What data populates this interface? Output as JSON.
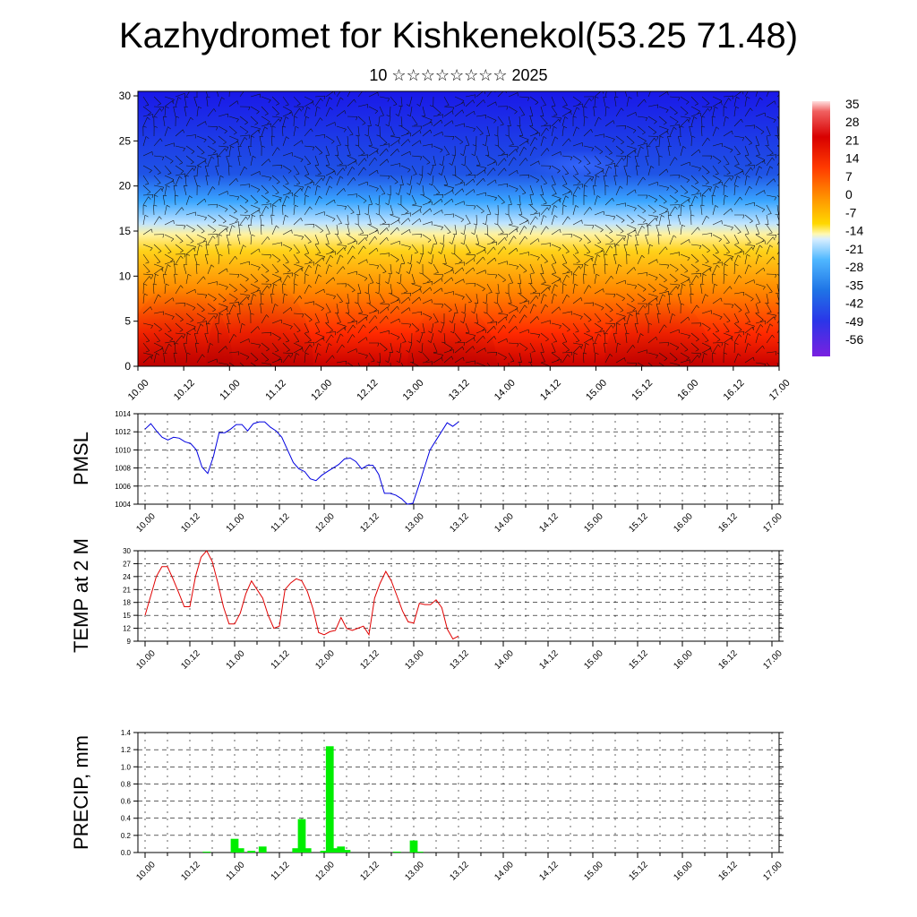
{
  "header": {
    "title": "Kazhydromet for Kishkenekol(53.25 71.48)",
    "subtitle": "10 ☆☆☆☆☆☆☆☆ 2025"
  },
  "colors": {
    "pmsl_line": "#0000e0",
    "temp_line": "#e00000",
    "precip_bar": "#00ee00",
    "grid": "#000000"
  },
  "chart_data": [
    {
      "type": "heatmap",
      "name": "cross-section",
      "x_ticklabels": [
        "10.00",
        "10.12",
        "11.00",
        "11.12",
        "12.00",
        "12.12",
        "13.00",
        "13.12",
        "14.00",
        "14.12",
        "15.00",
        "15.12",
        "16.00",
        "16.12",
        "17.00"
      ],
      "y_ticks": [
        0,
        5,
        10,
        15,
        20,
        25,
        30
      ],
      "ylim": [
        0,
        30.5
      ],
      "colorbar_labels": [
        "35",
        "28",
        "21",
        "14",
        "7",
        "0",
        "-7",
        "-14",
        "-21",
        "-28",
        "-35",
        "-42",
        "-49",
        "-56"
      ],
      "overlay": "wind barbs",
      "legend_position": "right"
    },
    {
      "type": "line",
      "ylabel": "PMSL",
      "ylim": [
        1004,
        1014
      ],
      "y_ticks": [
        1004,
        1006,
        1008,
        1010,
        1012,
        1014
      ],
      "x_ticklabels": [
        "10.00",
        "10.12",
        "11.00",
        "11.12",
        "12.00",
        "12.12",
        "13.00",
        "13.12",
        "14.00",
        "14.12",
        "15.00",
        "15.12",
        "16.00",
        "16.12",
        "17.00"
      ],
      "grid": true,
      "values": [
        1012.3,
        1012.9,
        1012.1,
        1011.4,
        1011.1,
        1011.4,
        1011.3,
        1010.9,
        1010.7,
        1010.0,
        1008.1,
        1007.4,
        1009.3,
        1011.9,
        1011.9,
        1012.3,
        1012.8,
        1012.8,
        1012.1,
        1012.9,
        1013.1,
        1013.1,
        1012.5,
        1012.1,
        1011.4,
        1010.0,
        1008.6,
        1007.9,
        1007.6,
        1006.8,
        1006.6,
        1007.2,
        1007.6,
        1008.0,
        1008.4,
        1009.0,
        1009.1,
        1008.7,
        1007.9,
        1008.3,
        1008.3,
        1007.3,
        1005.2,
        1005.2,
        1005.0,
        1004.6,
        1004.0,
        1004.1,
        1006.0,
        1008.0,
        1010.0,
        1011.0,
        1012.0,
        1013.0,
        1012.6,
        1013.1
      ]
    },
    {
      "type": "line",
      "ylabel": "TEMP at 2 M",
      "ylim": [
        9,
        30
      ],
      "y_ticks": [
        9,
        12,
        15,
        18,
        21,
        24,
        27,
        30
      ],
      "x_ticklabels": [
        "10.00",
        "10.12",
        "11.00",
        "11.12",
        "12.00",
        "12.12",
        "13.00",
        "13.12",
        "14.00",
        "14.12",
        "15.00",
        "15.12",
        "16.00",
        "16.12",
        "17.00"
      ],
      "grid": true,
      "values": [
        15.0,
        19.5,
        24.0,
        26.3,
        26.3,
        23.4,
        20.3,
        17.0,
        17.0,
        24.0,
        28.5,
        30.0,
        27.5,
        22.5,
        17.0,
        13.0,
        13.0,
        15.5,
        20.0,
        23.0,
        21.0,
        19.0,
        15.0,
        12.0,
        12.5,
        21.0,
        22.5,
        23.5,
        23.0,
        20.5,
        16.5,
        11.0,
        10.5,
        11.2,
        11.5,
        14.5,
        12.0,
        11.5,
        12.0,
        12.5,
        10.5,
        19.0,
        22.5,
        25.2,
        23.0,
        19.5,
        16.0,
        13.5,
        13.2,
        17.8,
        17.5,
        17.5,
        18.6,
        16.8,
        11.8,
        9.5,
        10.2
      ]
    },
    {
      "type": "bar",
      "ylabel": "PRECIP, mm",
      "ylim": [
        0,
        1.4
      ],
      "y_ticks": [
        "0.0",
        "0.2",
        "0.4",
        "0.6",
        "0.8",
        "1.0",
        "1.2",
        "1.4"
      ],
      "x_ticklabels": [
        "10.00",
        "10.12",
        "11.00",
        "11.12",
        "12.00",
        "12.12",
        "13.00",
        "13.12",
        "14.00",
        "14.12",
        "15.00",
        "15.12",
        "16.00",
        "16.12",
        "17.00"
      ],
      "grid": true,
      "values": [
        0,
        0,
        0,
        0,
        0,
        0,
        0,
        0,
        0,
        0,
        0,
        0.01,
        0,
        0,
        0,
        0,
        0.16,
        0.05,
        0,
        0.02,
        0,
        0.07,
        0,
        0,
        0,
        0,
        0,
        0.05,
        0.39,
        0.05,
        0,
        0,
        0.02,
        1.24,
        0.05,
        0.07,
        0.03,
        0,
        0,
        0,
        0,
        0,
        0,
        0,
        0,
        0.01,
        0,
        0,
        0.14,
        0.01,
        0,
        0,
        0,
        0,
        0,
        0
      ]
    }
  ]
}
